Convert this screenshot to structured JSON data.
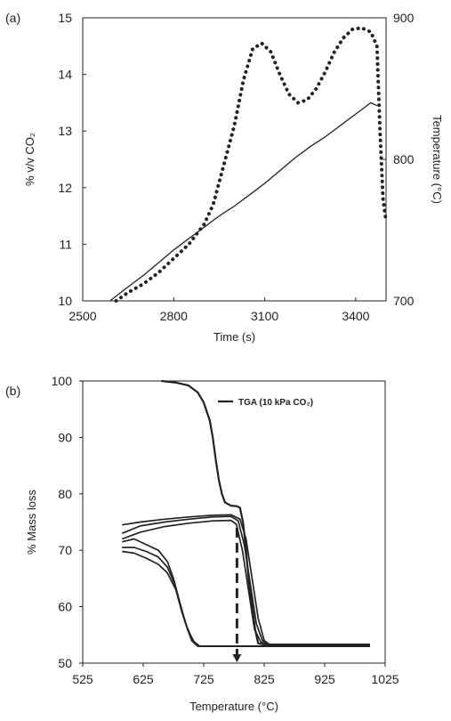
{
  "chart_data": [
    {
      "panel_label": "(a)",
      "type": "line",
      "title": "",
      "xlabel": "Time (s)",
      "ylabel_left": "% v/v CO₂",
      "ylabel_right": "Temperature (°C)",
      "xlim": [
        2500,
        3500
      ],
      "ylim_left": [
        10,
        15
      ],
      "ylim_right": [
        700,
        900
      ],
      "x_ticks": [
        2500,
        2800,
        3100,
        3400
      ],
      "y_ticks_left": [
        10,
        11,
        12,
        13,
        14,
        15
      ],
      "y_ticks_right": [
        700,
        800,
        900
      ],
      "grid": false,
      "legend": "none",
      "series": [
        {
          "style": "dotted",
          "axis": "left",
          "x": [
            2610,
            2650,
            2700,
            2750,
            2800,
            2850,
            2900,
            2930,
            2960,
            3000,
            3030,
            3060,
            3090,
            3120,
            3150,
            3180,
            3210,
            3240,
            3270,
            3300,
            3330,
            3360,
            3390,
            3420,
            3450,
            3470,
            3480,
            3490,
            3500
          ],
          "y": [
            10.0,
            10.15,
            10.3,
            10.5,
            10.75,
            11.0,
            11.35,
            11.7,
            12.3,
            13.1,
            13.9,
            14.45,
            14.55,
            14.4,
            14.0,
            13.65,
            13.5,
            13.55,
            13.75,
            14.05,
            14.4,
            14.65,
            14.8,
            14.82,
            14.75,
            14.5,
            13.0,
            11.8,
            11.4
          ]
        },
        {
          "style": "solid",
          "axis": "right",
          "x": [
            2590,
            2650,
            2700,
            2750,
            2800,
            2850,
            2900,
            2950,
            3000,
            3050,
            3100,
            3150,
            3200,
            3250,
            3300,
            3350,
            3400,
            3450,
            3470
          ],
          "y": [
            700,
            710,
            718,
            727,
            736,
            744,
            752,
            760,
            767,
            775,
            783,
            792,
            801,
            809,
            816,
            824,
            832,
            840,
            838
          ]
        }
      ]
    },
    {
      "panel_label": "(b)",
      "type": "line",
      "title": "",
      "xlabel": "Temperature (°C)",
      "ylabel": "% Mass loss",
      "xlim": [
        525,
        1025
      ],
      "ylim": [
        50,
        100
      ],
      "x_ticks": [
        525,
        625,
        725,
        825,
        925,
        1025
      ],
      "y_ticks": [
        50,
        60,
        70,
        80,
        90,
        100
      ],
      "grid": false,
      "legend": "top-right",
      "annotation": {
        "type": "dashed-arrow",
        "x": 780,
        "y_from": 74,
        "y_to": 50
      },
      "series": [
        {
          "name": "TGA (10 kPa CO₂)",
          "style": "solid",
          "x": [
            655,
            680,
            700,
            715,
            725,
            735,
            740,
            745,
            750,
            755,
            760,
            770,
            780,
            785,
            790,
            795,
            800,
            810,
            815,
            825,
            1000
          ],
          "y": [
            100,
            99.7,
            99.2,
            98,
            96.2,
            93,
            90,
            86,
            82.5,
            80,
            78.5,
            77.9,
            77.8,
            77.5,
            75,
            70,
            64,
            56,
            53.5,
            53.3,
            53.3
          ]
        },
        {
          "style": "solid",
          "x": [
            590,
            620,
            660,
            700,
            740,
            770,
            785,
            795,
            805,
            815,
            825,
            835,
            1000
          ],
          "y": [
            74.5,
            75.0,
            75.5,
            75.9,
            76.2,
            76.3,
            75.5,
            72,
            65,
            58,
            54,
            53.2,
            53.2
          ]
        },
        {
          "style": "solid",
          "x": [
            590,
            620,
            660,
            700,
            740,
            770,
            782,
            792,
            802,
            812,
            822,
            832,
            1000
          ],
          "y": [
            73.0,
            74.3,
            75.0,
            75.5,
            75.9,
            76.0,
            75.2,
            71,
            64,
            57,
            54,
            53.2,
            53.2
          ]
        },
        {
          "style": "solid",
          "x": [
            590,
            620,
            660,
            700,
            740,
            770,
            779,
            789,
            799,
            809,
            819,
            829,
            1000
          ],
          "y": [
            72.0,
            73.2,
            74.2,
            74.8,
            75.2,
            75.3,
            74.6,
            70,
            63,
            56,
            53.8,
            53.2,
            53.2
          ]
        },
        {
          "style": "solid",
          "x": [
            590,
            610,
            630,
            650,
            665,
            675,
            685,
            695,
            705,
            715,
            730,
            1000
          ],
          "y": [
            71.5,
            72.0,
            71.0,
            70.0,
            68.0,
            65.0,
            61.0,
            57.0,
            54.0,
            53.0,
            53.0,
            53.0
          ]
        },
        {
          "style": "solid",
          "x": [
            590,
            610,
            630,
            650,
            665,
            677,
            687,
            697,
            707,
            717,
            732,
            1000
          ],
          "y": [
            70.5,
            70.5,
            69.8,
            68.8,
            67.0,
            64.0,
            60.0,
            56.5,
            54.0,
            53.0,
            53.0,
            53.0
          ]
        },
        {
          "style": "solid",
          "x": [
            590,
            610,
            630,
            650,
            665,
            679,
            689,
            699,
            709,
            719,
            734,
            1000
          ],
          "y": [
            69.8,
            69.5,
            68.6,
            67.5,
            66.0,
            63.0,
            59.0,
            55.8,
            53.8,
            53.0,
            53.0,
            53.0
          ]
        }
      ]
    }
  ]
}
